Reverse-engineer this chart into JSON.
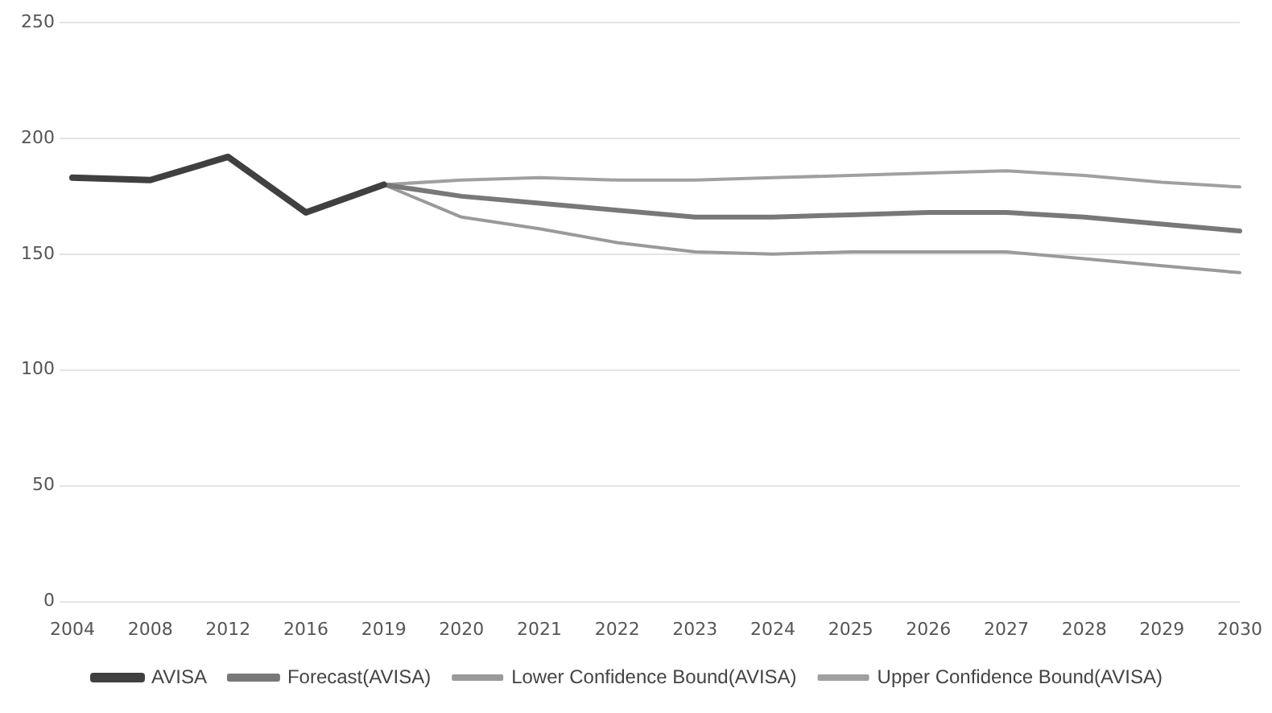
{
  "chart_data": {
    "type": "line",
    "categories": [
      "2004",
      "2008",
      "2012",
      "2016",
      "2019",
      "2020",
      "2021",
      "2022",
      "2023",
      "2024",
      "2025",
      "2026",
      "2027",
      "2028",
      "2029",
      "2030"
    ],
    "series": [
      {
        "name": "AVISA",
        "color": "#404040",
        "values": [
          183,
          182,
          192,
          168,
          180,
          null,
          null,
          null,
          null,
          null,
          null,
          null,
          null,
          null,
          null,
          null
        ]
      },
      {
        "name": "Forecast(AVISA)",
        "color": "#787878",
        "values": [
          null,
          null,
          null,
          null,
          180,
          175,
          172,
          169,
          166,
          166,
          167,
          168,
          168,
          166,
          163,
          160
        ]
      },
      {
        "name": "Lower Confidence Bound(AVISA)",
        "color": "#9a9a9a",
        "values": [
          null,
          null,
          null,
          null,
          180,
          166,
          161,
          155,
          151,
          150,
          151,
          151,
          151,
          148,
          145,
          142
        ]
      },
      {
        "name": "Upper Confidence Bound(AVISA)",
        "color": "#a0a0a0",
        "values": [
          null,
          null,
          null,
          null,
          180,
          182,
          183,
          182,
          182,
          183,
          184,
          185,
          186,
          184,
          181,
          179
        ]
      }
    ],
    "ylim": [
      0,
      250
    ],
    "yticks": [
      0,
      50,
      100,
      150,
      200,
      250
    ],
    "grid": "y",
    "legend": "bottom",
    "marker": "none",
    "line_style": "solid"
  }
}
